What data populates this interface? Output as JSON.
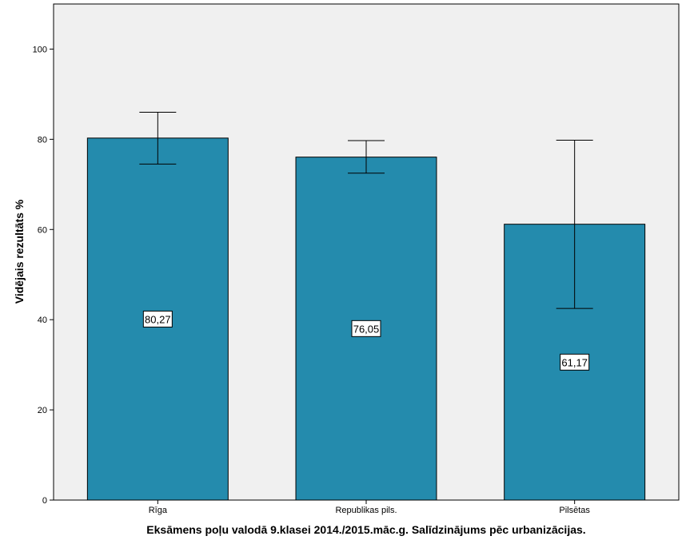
{
  "chart_data": {
    "type": "bar",
    "title": "",
    "xlabel": "Eksāmens poļu valodā 9.klasei 2014./2015.māc.g. Salīdzinājums pēc urbanizācijas.",
    "ylabel": "Vidējais rezultāts %",
    "categories": [
      "Rīga",
      "Republikas pils.",
      "Pilsētas"
    ],
    "values": [
      80.27,
      76.05,
      61.17
    ],
    "data_labels": [
      "80,27",
      "76,05",
      "61,17"
    ],
    "error_bars": [
      {
        "low": 74.5,
        "high": 86.0
      },
      {
        "low": 72.5,
        "high": 79.7
      },
      {
        "low": 42.5,
        "high": 79.8
      }
    ],
    "ylim": [
      0,
      110
    ],
    "yticks": [
      0,
      20,
      40,
      60,
      80,
      100
    ],
    "grid": false,
    "legend": "none",
    "colors": {
      "bar": "#248BAD",
      "plot_background": "#F0F0F0",
      "bar_edge": "#000000"
    }
  }
}
